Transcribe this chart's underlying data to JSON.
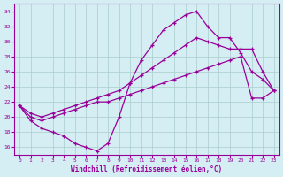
{
  "xlabel": "Windchill (Refroidissement éolien,°C)",
  "hours": [
    0,
    1,
    2,
    3,
    4,
    5,
    6,
    7,
    8,
    9,
    10,
    11,
    12,
    13,
    14,
    15,
    16,
    17,
    18,
    19,
    20,
    21,
    22,
    23
  ],
  "y_peak": [
    21.5,
    19.5,
    18.5,
    18.0,
    17.5,
    16.5,
    16.0,
    15.5,
    16.5,
    20.0,
    24.5,
    27.5,
    29.5,
    31.5,
    32.5,
    33.5,
    34.0,
    32.0,
    30.5,
    30.5,
    28.5,
    26.0,
    25.0,
    23.5
  ],
  "y_high": [
    21.5,
    20.5,
    20.0,
    20.5,
    21.0,
    21.5,
    22.0,
    22.5,
    23.0,
    23.5,
    24.5,
    25.5,
    26.5,
    27.5,
    28.5,
    29.5,
    30.5,
    30.0,
    29.5,
    29.0,
    29.0,
    29.0,
    26.0,
    23.5
  ],
  "y_low": [
    21.5,
    20.0,
    19.5,
    20.0,
    20.5,
    21.0,
    21.5,
    22.0,
    22.0,
    22.5,
    23.0,
    23.5,
    24.0,
    24.5,
    25.0,
    25.5,
    26.0,
    26.5,
    27.0,
    27.5,
    28.0,
    22.5,
    22.5,
    23.5
  ],
  "color": "#990099",
  "bg_color": "#d4eef4",
  "grid_color": "#aacccc",
  "ylim": [
    15,
    35
  ],
  "yticks": [
    16,
    18,
    20,
    22,
    24,
    26,
    28,
    30,
    32,
    34
  ]
}
